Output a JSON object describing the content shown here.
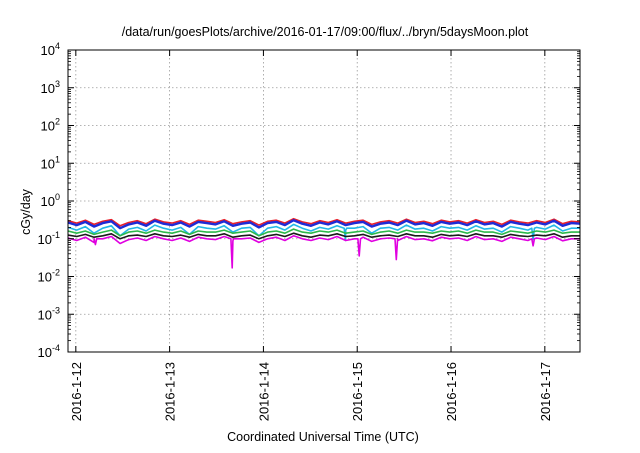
{
  "chart_data": {
    "type": "line",
    "title": "/data/run/goesPlots/archive/2016-01-17/09:00/flux/../bryn/5daysMoon.plot",
    "ylabel": "cGy/day",
    "xlabel": "Coordinated Universal Time (UTC)",
    "y_scale": "log",
    "ylim": [
      0.0001,
      10000
    ],
    "y_ticks": [
      {
        "value": 0.0001,
        "base": "10",
        "exp": "-4"
      },
      {
        "value": 0.001,
        "base": "10",
        "exp": "-3"
      },
      {
        "value": 0.01,
        "base": "10",
        "exp": "-2"
      },
      {
        "value": 0.1,
        "base": "10",
        "exp": "-1"
      },
      {
        "value": 1,
        "base": "10",
        "exp": "0"
      },
      {
        "value": 10,
        "base": "10",
        "exp": "1"
      },
      {
        "value": 100,
        "base": "10",
        "exp": "2"
      },
      {
        "value": 1000,
        "base": "10",
        "exp": "3"
      },
      {
        "value": 10000,
        "base": "10",
        "exp": "4"
      }
    ],
    "xlim": [
      "2016-01-11 22:00",
      "2016-01-17 09:00"
    ],
    "x_ticks": [
      "2016-1-12",
      "2016-1-13",
      "2016-1-14",
      "2016-1-15",
      "2016-1-16",
      "2016-1-17"
    ],
    "grid": true,
    "series": [
      {
        "color": "#e8202a",
        "level": 0.28,
        "values": [
          0.3,
          0.26,
          0.31,
          0.24,
          0.29,
          0.32,
          0.22,
          0.27,
          0.3,
          0.25,
          0.33,
          0.28,
          0.26,
          0.3,
          0.24,
          0.31,
          0.29,
          0.27,
          0.32,
          0.25,
          0.28,
          0.3,
          0.23,
          0.29,
          0.31,
          0.26,
          0.34,
          0.28,
          0.25,
          0.3,
          0.27,
          0.32,
          0.26,
          0.29,
          0.31,
          0.24,
          0.28,
          0.3,
          0.26,
          0.33,
          0.27,
          0.29,
          0.25,
          0.31,
          0.28,
          0.3,
          0.26,
          0.32,
          0.27,
          0.29,
          0.24,
          0.31,
          0.28,
          0.26,
          0.3,
          0.27,
          0.33,
          0.25,
          0.29,
          0.28
        ]
      },
      {
        "color": "#1e2bd6",
        "level": 0.25,
        "values": [
          0.27,
          0.23,
          0.28,
          0.21,
          0.26,
          0.29,
          0.19,
          0.24,
          0.27,
          0.22,
          0.3,
          0.25,
          0.23,
          0.27,
          0.21,
          0.28,
          0.26,
          0.24,
          0.29,
          0.22,
          0.25,
          0.27,
          0.2,
          0.26,
          0.28,
          0.23,
          0.31,
          0.25,
          0.22,
          0.27,
          0.24,
          0.29,
          0.23,
          0.26,
          0.28,
          0.21,
          0.25,
          0.27,
          0.23,
          0.3,
          0.24,
          0.26,
          0.22,
          0.28,
          0.25,
          0.27,
          0.23,
          0.29,
          0.24,
          0.26,
          0.21,
          0.28,
          0.25,
          0.23,
          0.27,
          0.24,
          0.3,
          0.22,
          0.26,
          0.25
        ]
      },
      {
        "color": "#22b8e6",
        "level": 0.19,
        "values": [
          0.2,
          0.17,
          0.21,
          0.14,
          0.19,
          0.22,
          0.12,
          0.18,
          0.2,
          0.16,
          0.23,
          0.19,
          0.17,
          0.2,
          0.13,
          0.21,
          0.19,
          0.18,
          0.22,
          0.15,
          0.19,
          0.2,
          0.12,
          0.19,
          0.21,
          0.17,
          0.24,
          0.19,
          0.16,
          0.2,
          0.18,
          0.22,
          0.17,
          0.19,
          0.21,
          0.14,
          0.19,
          0.2,
          0.17,
          0.23,
          0.18,
          0.19,
          0.16,
          0.21,
          0.19,
          0.2,
          0.17,
          0.22,
          0.18,
          0.19,
          0.15,
          0.21,
          0.19,
          0.17,
          0.2,
          0.18,
          0.23,
          0.16,
          0.19,
          0.19
        ]
      },
      {
        "color": "#2db84a",
        "level": 0.15,
        "values": [
          0.16,
          0.14,
          0.16,
          0.13,
          0.15,
          0.17,
          0.12,
          0.15,
          0.16,
          0.14,
          0.17,
          0.15,
          0.14,
          0.16,
          0.13,
          0.16,
          0.15,
          0.15,
          0.17,
          0.14,
          0.15,
          0.16,
          0.12,
          0.15,
          0.16,
          0.14,
          0.18,
          0.15,
          0.14,
          0.16,
          0.15,
          0.17,
          0.14,
          0.15,
          0.16,
          0.13,
          0.15,
          0.16,
          0.14,
          0.17,
          0.15,
          0.15,
          0.14,
          0.16,
          0.15,
          0.16,
          0.14,
          0.17,
          0.15,
          0.15,
          0.13,
          0.16,
          0.15,
          0.14,
          0.16,
          0.15,
          0.17,
          0.14,
          0.15,
          0.15
        ]
      },
      {
        "color": "#1a1a1a",
        "level": 0.12,
        "values": [
          0.125,
          0.115,
          0.13,
          0.11,
          0.12,
          0.135,
          0.1,
          0.12,
          0.125,
          0.115,
          0.135,
          0.12,
          0.115,
          0.125,
          0.11,
          0.13,
          0.12,
          0.12,
          0.135,
          0.11,
          0.12,
          0.125,
          0.1,
          0.12,
          0.13,
          0.115,
          0.14,
          0.12,
          0.11,
          0.125,
          0.12,
          0.135,
          0.115,
          0.12,
          0.13,
          0.11,
          0.12,
          0.125,
          0.115,
          0.135,
          0.12,
          0.12,
          0.11,
          0.13,
          0.12,
          0.125,
          0.115,
          0.135,
          0.12,
          0.12,
          0.11,
          0.13,
          0.12,
          0.115,
          0.125,
          0.12,
          0.135,
          0.11,
          0.12,
          0.12
        ]
      },
      {
        "color": "#e000e0",
        "level": 0.1,
        "values": [
          0.105,
          0.09,
          0.11,
          0.08,
          0.1,
          0.115,
          0.075,
          0.095,
          0.105,
          0.09,
          0.115,
          0.1,
          0.09,
          0.105,
          0.085,
          0.11,
          0.1,
          0.095,
          0.115,
          0.088,
          0.1,
          0.105,
          0.08,
          0.1,
          0.11,
          0.09,
          0.12,
          0.1,
          0.09,
          0.105,
          0.095,
          0.115,
          0.09,
          0.1,
          0.11,
          0.085,
          0.1,
          0.105,
          0.09,
          0.115,
          0.095,
          0.1,
          0.088,
          0.11,
          0.1,
          0.105,
          0.09,
          0.115,
          0.095,
          0.1,
          0.085,
          0.11,
          0.1,
          0.09,
          0.105,
          0.095,
          0.115,
          0.088,
          0.1,
          0.1
        ]
      }
    ],
    "dips": [
      {
        "series": 5,
        "t": "2016-01-13 16:00",
        "value": 0.017
      },
      {
        "series": 5,
        "t": "2016-01-15 00:30",
        "value": 0.035
      },
      {
        "series": 5,
        "t": "2016-01-15 10:00",
        "value": 0.028
      },
      {
        "series": 5,
        "t": "2016-01-12 05:00",
        "value": 0.07
      },
      {
        "series": 5,
        "t": "2016-01-16 21:00",
        "value": 0.065
      },
      {
        "series": 2,
        "t": "2016-01-14 21:00",
        "value": 0.09
      },
      {
        "series": 2,
        "t": "2016-01-16 21:00",
        "value": 0.095
      }
    ]
  }
}
